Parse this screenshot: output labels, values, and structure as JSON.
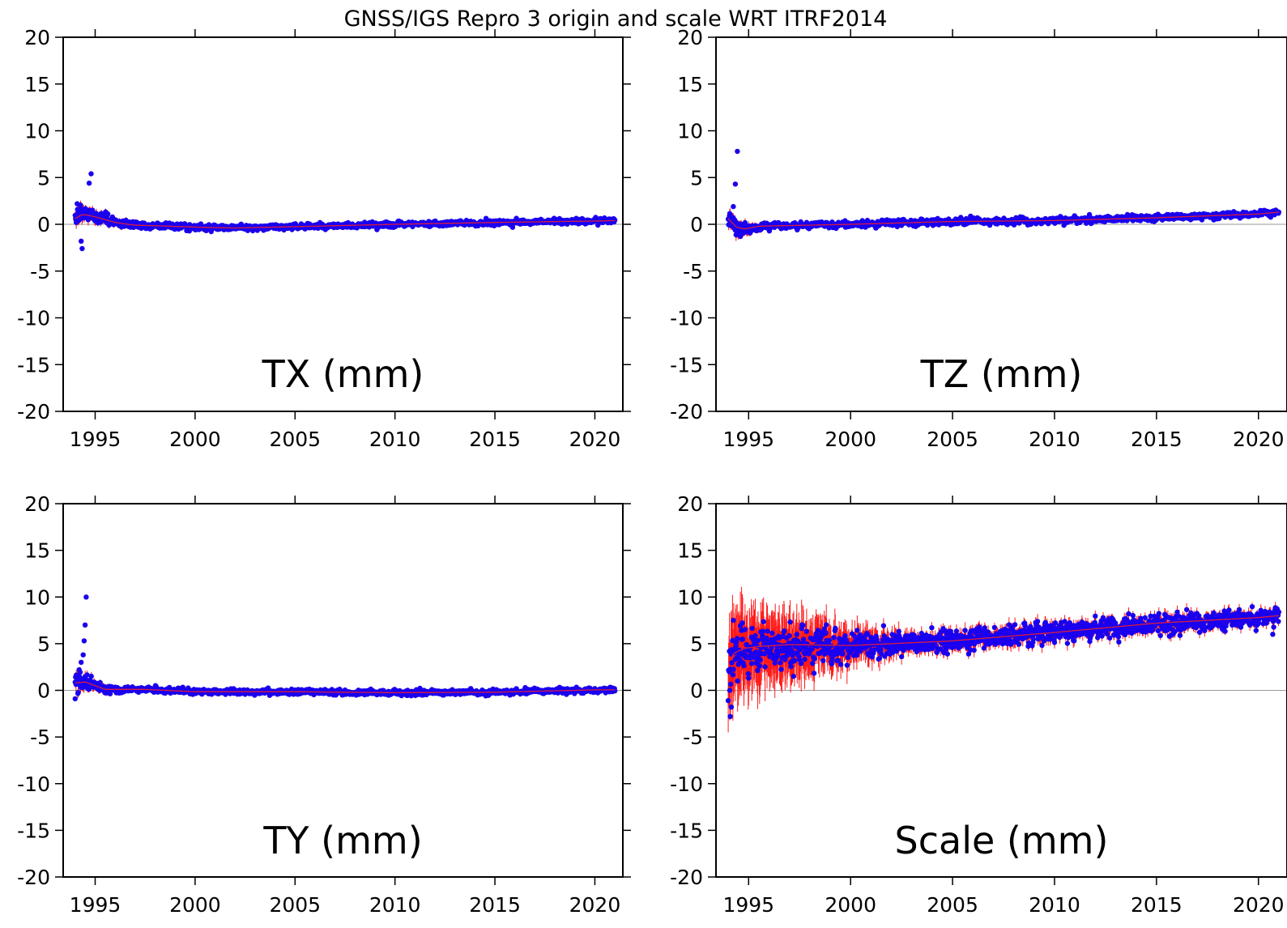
{
  "figure": {
    "title": "GNSS/IGS Repro 3 origin and scale WRT ITRF2014",
    "colors": {
      "background": "#ffffff",
      "frame": "#000000",
      "zero_line": "#999999",
      "points": "#1a00ee",
      "error_bars": "#ff1a1a",
      "trend": "#ff2020"
    }
  },
  "chart_data": [
    {
      "type": "scatter",
      "title": "",
      "label": "TX (mm)",
      "xlabel": "",
      "ylabel": "",
      "xlim": [
        1993.4,
        2021.4
      ],
      "ylim": [
        -20,
        20
      ],
      "xticks": [
        1995,
        2000,
        2005,
        2010,
        2015,
        2020
      ],
      "yticks": [
        20,
        15,
        10,
        5,
        0,
        -5,
        -10,
        -15,
        -20
      ],
      "grid": false,
      "zero_line": true,
      "points_per_year": 52,
      "trend": {
        "x": [
          1994.0,
          1994.3,
          1994.6,
          1995.0,
          1996.0,
          1997.0,
          1998.0,
          2000.0,
          2002.0,
          2005.0,
          2010.0,
          2015.0,
          2020.0,
          2021.0
        ],
        "y": [
          0.6,
          1.0,
          1.0,
          0.8,
          0.2,
          -0.1,
          -0.15,
          -0.3,
          -0.4,
          -0.25,
          0.0,
          0.2,
          0.35,
          0.4
        ]
      },
      "scatter_sd": {
        "x": [
          1994.0,
          1995.0,
          1996.5,
          2000.0,
          2021.0
        ],
        "y": [
          0.8,
          0.5,
          0.3,
          0.2,
          0.2
        ]
      },
      "error_sd": {
        "x": [
          1994.0,
          1996.0,
          2000.0,
          2021.0
        ],
        "y": [
          0.6,
          0.3,
          0.15,
          0.1
        ]
      },
      "outliers": [
        [
          1994.35,
          -2.6
        ],
        [
          1994.3,
          -1.8
        ],
        [
          1994.7,
          4.4
        ],
        [
          1994.8,
          5.4
        ],
        [
          1994.1,
          2.2
        ]
      ]
    },
    {
      "type": "scatter",
      "title": "",
      "label": "TZ (mm)",
      "xlabel": "",
      "ylabel": "",
      "xlim": [
        1993.4,
        2021.4
      ],
      "ylim": [
        -20,
        20
      ],
      "xticks": [
        1995,
        2000,
        2005,
        2010,
        2015,
        2020
      ],
      "yticks": [
        20,
        15,
        10,
        5,
        0,
        -5,
        -10,
        -15,
        -20
      ],
      "grid": false,
      "zero_line": true,
      "points_per_year": 52,
      "trend": {
        "x": [
          1994.0,
          1994.4,
          1994.8,
          1995.5,
          2000.0,
          2005.0,
          2010.0,
          2015.0,
          2020.0,
          2021.0
        ],
        "y": [
          0.6,
          -0.3,
          -0.5,
          -0.2,
          0.0,
          0.3,
          0.4,
          0.7,
          1.1,
          1.3
        ]
      },
      "scatter_sd": {
        "x": [
          1994.0,
          1995.0,
          1996.5,
          2021.0
        ],
        "y": [
          0.8,
          0.4,
          0.25,
          0.22
        ]
      },
      "error_sd": {
        "x": [
          1994.0,
          1996.0,
          2021.0
        ],
        "y": [
          0.6,
          0.2,
          0.1
        ]
      },
      "outliers": [
        [
          1994.45,
          7.8
        ],
        [
          1994.35,
          4.3
        ],
        [
          1994.25,
          1.9
        ],
        [
          1994.6,
          -1.3
        ]
      ]
    },
    {
      "type": "scatter",
      "title": "",
      "label": "TY (mm)",
      "xlabel": "",
      "ylabel": "",
      "xlim": [
        1993.4,
        2021.4
      ],
      "ylim": [
        -20,
        20
      ],
      "xticks": [
        1995,
        2000,
        2005,
        2010,
        2015,
        2020
      ],
      "yticks": [
        20,
        15,
        10,
        5,
        0,
        -5,
        -10,
        -15,
        -20
      ],
      "grid": false,
      "zero_line": true,
      "points_per_year": 52,
      "trend": {
        "x": [
          1994.0,
          1994.5,
          1995.5,
          1997.5,
          2000.0,
          2005.0,
          2010.0,
          2015.0,
          2020.0,
          2021.0
        ],
        "y": [
          0.8,
          0.9,
          0.1,
          0.1,
          -0.15,
          -0.15,
          -0.25,
          -0.2,
          0.05,
          0.05
        ]
      },
      "scatter_sd": {
        "x": [
          1994.0,
          1995.0,
          1996.5,
          2021.0
        ],
        "y": [
          0.8,
          0.4,
          0.22,
          0.2
        ]
      },
      "error_sd": {
        "x": [
          1994.0,
          1996.0,
          2021.0
        ],
        "y": [
          0.6,
          0.2,
          0.1
        ]
      },
      "outliers": [
        [
          1994.55,
          10.0
        ],
        [
          1994.5,
          7.0
        ],
        [
          1994.45,
          5.3
        ],
        [
          1994.4,
          3.8
        ],
        [
          1994.3,
          3.0
        ],
        [
          1994.2,
          2.2
        ],
        [
          1994.0,
          -0.9
        ]
      ]
    },
    {
      "type": "scatter",
      "title": "",
      "label": "Scale (mm)",
      "xlabel": "",
      "ylabel": "",
      "xlim": [
        1993.4,
        2021.4
      ],
      "ylim": [
        -20,
        20
      ],
      "xticks": [
        1995,
        2000,
        2005,
        2010,
        2015,
        2020
      ],
      "yticks": [
        20,
        15,
        10,
        5,
        0,
        -5,
        -10,
        -15,
        -20
      ],
      "grid": false,
      "zero_line": true,
      "points_per_year": 52,
      "trend": {
        "x": [
          1994.0,
          1994.3,
          1994.8,
          1995.5,
          1997.0,
          2000.0,
          2002.0,
          2005.0,
          2010.0,
          2015.0,
          2020.0,
          2021.0
        ],
        "y": [
          3.0,
          4.0,
          4.5,
          4.7,
          4.9,
          4.8,
          5.0,
          5.3,
          6.2,
          7.2,
          7.8,
          8.0
        ]
      },
      "scatter_sd": {
        "x": [
          1994.0,
          1995.0,
          1998.0,
          2000.0,
          2005.0,
          2021.0
        ],
        "y": [
          2.2,
          1.8,
          1.4,
          1.0,
          0.8,
          0.7
        ]
      },
      "error_sd": {
        "x": [
          1994.0,
          1995.5,
          1998.0,
          2000.0,
          2003.0,
          2021.0
        ],
        "y": [
          4.0,
          3.2,
          2.5,
          1.5,
          0.7,
          0.5
        ]
      },
      "outliers": [
        [
          1994.1,
          -2.8
        ],
        [
          1994.15,
          -1.8
        ],
        [
          1994.05,
          2.0
        ],
        [
          1994.25,
          7.5
        ],
        [
          1997.2,
          1.5
        ],
        [
          2020.7,
          6.0
        ]
      ]
    }
  ]
}
